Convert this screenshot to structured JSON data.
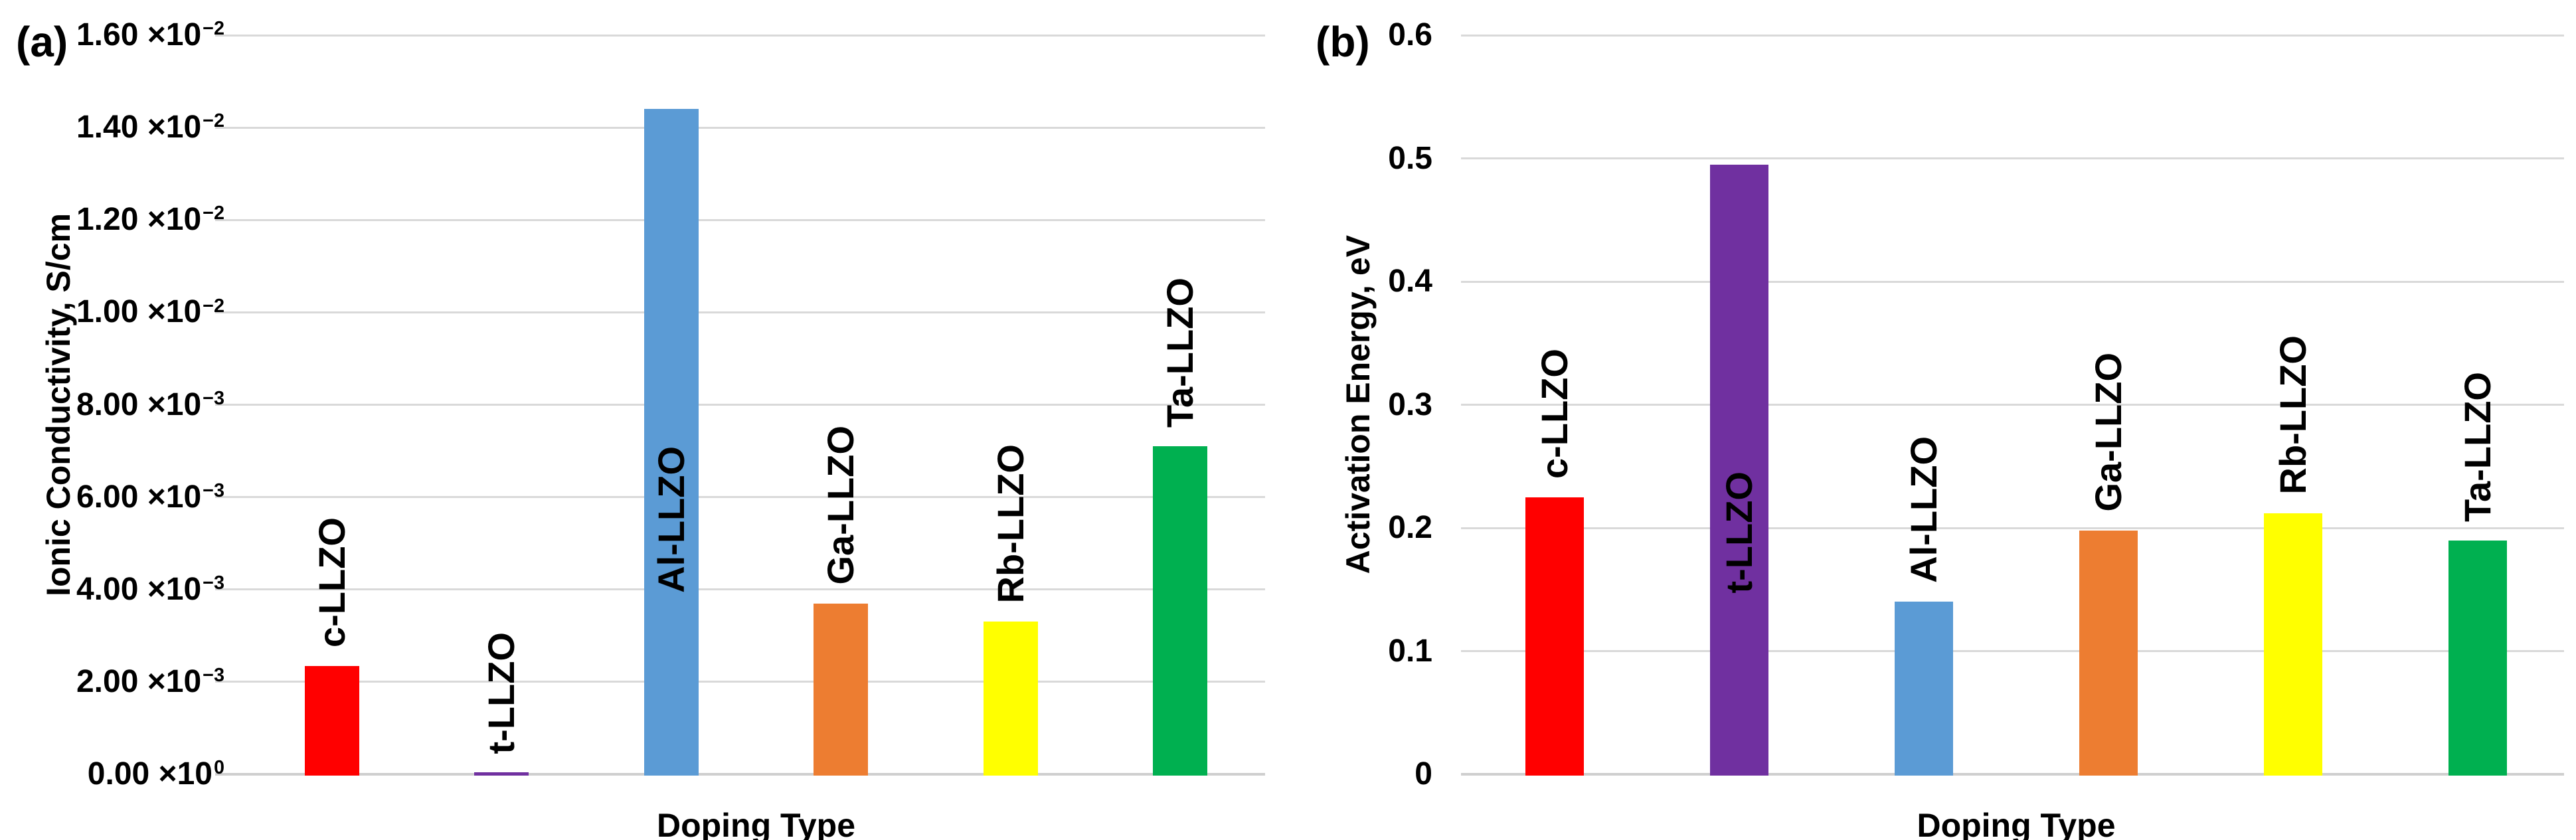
{
  "panels": [
    {
      "letter": "(a)",
      "y_title": "Ionic Conductivity, S/cm",
      "x_title": "Doping Type"
    },
    {
      "letter": "(b)",
      "y_title": "Activation Energy, eV",
      "x_title": "Doping Type"
    }
  ],
  "chart_data": [
    {
      "type": "bar",
      "panel": "(a)",
      "title": "",
      "xlabel": "Doping Type",
      "ylabel": "Ionic Conductivity, S/cm",
      "categories": [
        "c-LLZO",
        "t-LLZO",
        "Al-LLZO",
        "Ga-LLZO",
        "Rb-LLZO",
        "Ta-LLZO"
      ],
      "values": [
        0.00235,
        4e-05,
        0.0144,
        0.0037,
        0.0033,
        0.0071
      ],
      "bar_colors": [
        "#FF0000",
        "#7030A0",
        "#5B9BD5",
        "#ED7D31",
        "#FFFF00",
        "#00B050"
      ],
      "ylim": [
        0,
        0.016
      ],
      "grid": true,
      "legend": false,
      "yticks": [
        {
          "v": 0,
          "text": "0.00 ×10",
          "sup": "0"
        },
        {
          "v": 0.002,
          "text": "2.00 ×10",
          "sup": "−3"
        },
        {
          "v": 0.004,
          "text": "4.00 ×10",
          "sup": "−3"
        },
        {
          "v": 0.006,
          "text": "6.00 ×10",
          "sup": "−3"
        },
        {
          "v": 0.008,
          "text": "8.00 ×10",
          "sup": "−3"
        },
        {
          "v": 0.01,
          "text": "1.00 ×10",
          "sup": "−2"
        },
        {
          "v": 0.012,
          "text": "1.20 ×10",
          "sup": "−2"
        },
        {
          "v": 0.014,
          "text": "1.40 ×10",
          "sup": "−2"
        },
        {
          "v": 0.016,
          "text": "1.60 ×10",
          "sup": "−2"
        }
      ]
    },
    {
      "type": "bar",
      "panel": "(b)",
      "title": "",
      "xlabel": "Doping Type",
      "ylabel": "Activation Energy, eV",
      "categories": [
        "c-LLZO",
        "t-LLZO",
        "Al-LLZO",
        "Ga-LLZO",
        "Rb-LLZO",
        "Ta-LLZO"
      ],
      "values": [
        0.225,
        0.495,
        0.14,
        0.198,
        0.212,
        0.19
      ],
      "bar_colors": [
        "#FF0000",
        "#7030A0",
        "#5B9BD5",
        "#ED7D31",
        "#FFFF00",
        "#00B050"
      ],
      "ylim": [
        0,
        0.6
      ],
      "grid": true,
      "legend": false,
      "yticks": [
        {
          "v": 0,
          "text": "0"
        },
        {
          "v": 0.1,
          "text": "0.1"
        },
        {
          "v": 0.2,
          "text": "0.2"
        },
        {
          "v": 0.3,
          "text": "0.3"
        },
        {
          "v": 0.4,
          "text": "0.4"
        },
        {
          "v": 0.5,
          "text": "0.5"
        },
        {
          "v": 0.6,
          "text": "0.6"
        }
      ]
    }
  ],
  "style_colors": {
    "gridline": "#D9D9D9",
    "baseline": "#CFCFCF",
    "text": "#000000",
    "background": "#FFFFFF"
  }
}
